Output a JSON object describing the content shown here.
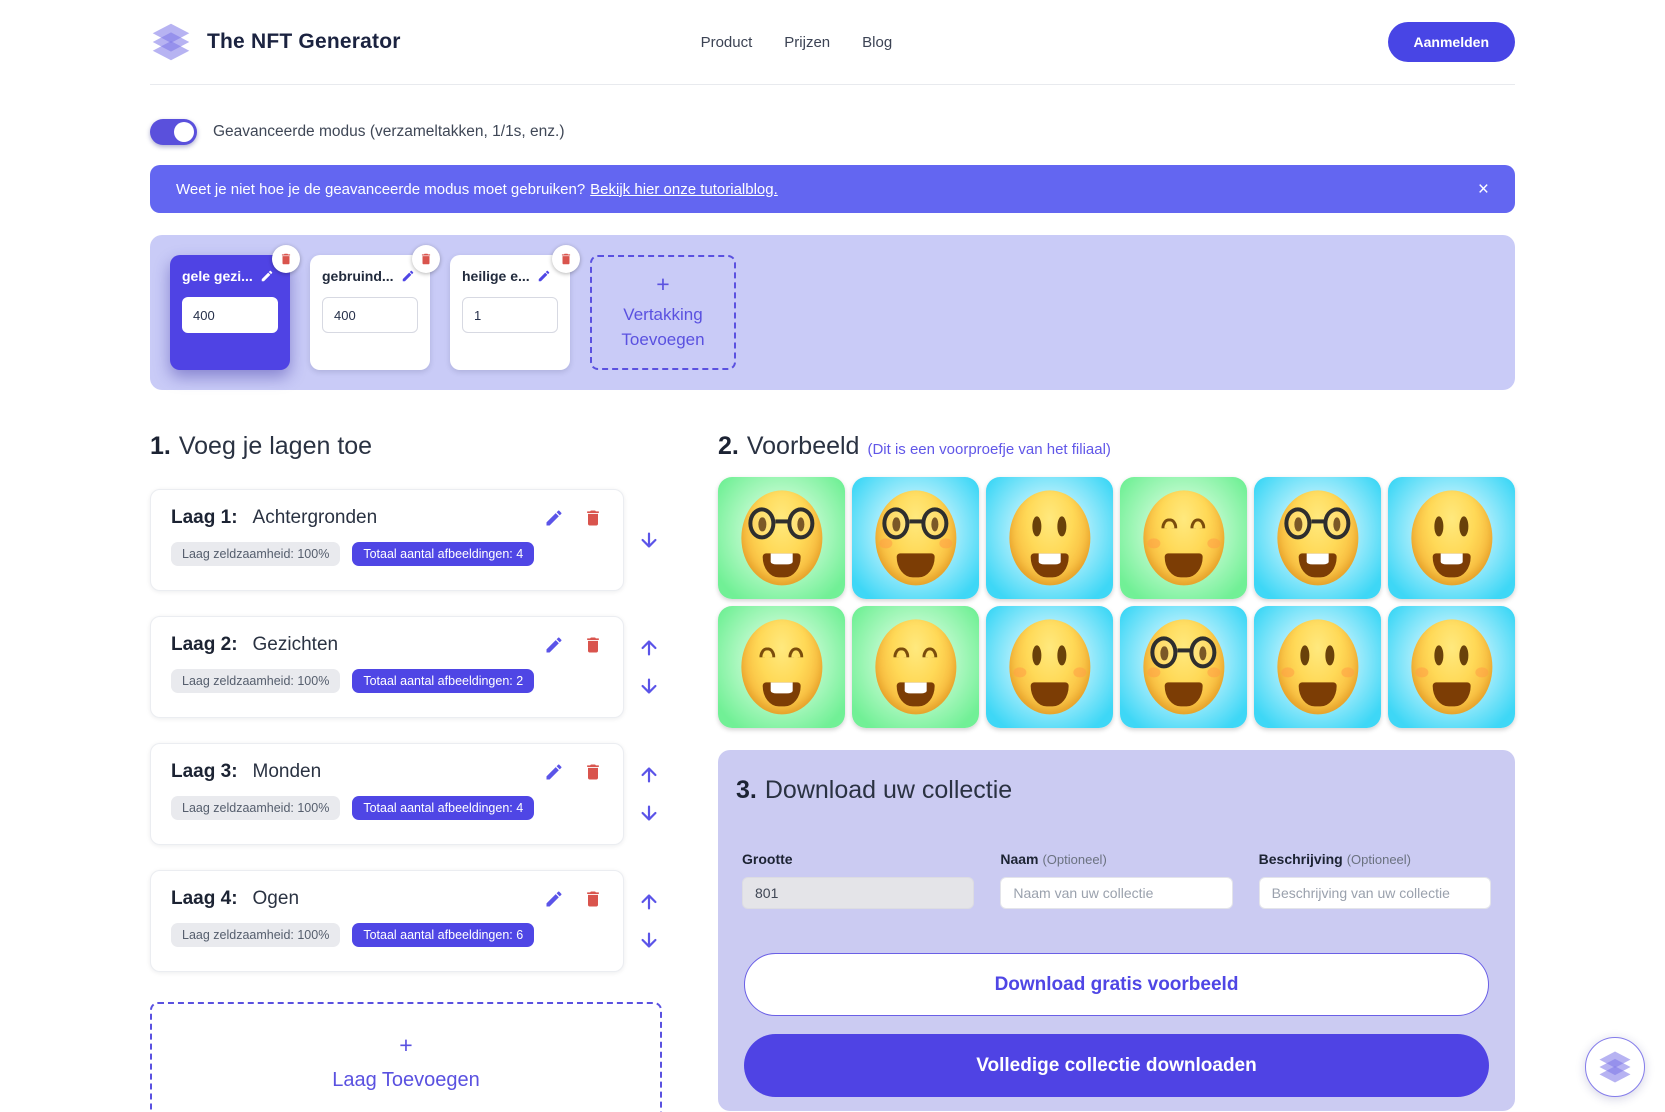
{
  "colors": {
    "primary": "#4f46e5",
    "banner": "#6366f1",
    "panel_bg": "#c9cbf7",
    "download_bg": "#cbcbf2",
    "danger": "#d9544d",
    "accent": "#5b54e8"
  },
  "header": {
    "brand": "The NFT Generator",
    "nav": [
      {
        "label": "Product"
      },
      {
        "label": "Prijzen"
      },
      {
        "label": "Blog"
      }
    ],
    "signin_label": "Aanmelden"
  },
  "advanced_toggle": {
    "on": true,
    "label": "Geavanceerde modus (verzameltakken, 1/1s, enz.)"
  },
  "banner": {
    "text": "Weet je niet hoe je de geavanceerde modus moet gebruiken?",
    "link_text": "Bekijk hier onze tutorialblog.",
    "close_label": "×"
  },
  "branches": {
    "items": [
      {
        "name": "gele gezi...",
        "count": "400",
        "selected": true
      },
      {
        "name": "gebruind...",
        "count": "400",
        "selected": false
      },
      {
        "name": "heilige e...",
        "count": "1",
        "selected": false
      }
    ],
    "add_plus": "+",
    "add_label": "Vertakking Toevoegen"
  },
  "layers_section": {
    "number": "1.",
    "title": "Voeg je lagen toe",
    "items": [
      {
        "prefix": "Laag 1:",
        "name": "Achtergronden",
        "rarity_label": "Laag zeldzaamheid: 100%",
        "total_label": "Totaal aantal afbeeldingen: 4",
        "can_up": false,
        "can_down": true
      },
      {
        "prefix": "Laag 2:",
        "name": "Gezichten",
        "rarity_label": "Laag zeldzaamheid: 100%",
        "total_label": "Totaal aantal afbeeldingen: 2",
        "can_up": true,
        "can_down": true
      },
      {
        "prefix": "Laag 3:",
        "name": "Monden",
        "rarity_label": "Laag zeldzaamheid: 100%",
        "total_label": "Totaal aantal afbeeldingen: 4",
        "can_up": true,
        "can_down": true
      },
      {
        "prefix": "Laag 4:",
        "name": "Ogen",
        "rarity_label": "Laag zeldzaamheid: 100%",
        "total_label": "Totaal aantal afbeeldingen: 6",
        "can_up": true,
        "can_down": true
      }
    ],
    "add_plus": "+",
    "add_label": "Laag Toevoegen"
  },
  "preview_section": {
    "number": "2.",
    "title": "Voorbeeld",
    "note": "(Dit is een voorproefje van het filiaal)",
    "tiles": [
      {
        "bg": "green",
        "glasses": true,
        "eyes": "oval",
        "mouth": "teeth",
        "blush": false
      },
      {
        "bg": "cyan",
        "glasses": true,
        "eyes": "oval",
        "mouth": "smile",
        "blush": true
      },
      {
        "bg": "cyan",
        "glasses": false,
        "eyes": "oval",
        "mouth": "teeth",
        "blush": false
      },
      {
        "bg": "green",
        "glasses": false,
        "eyes": "closed",
        "mouth": "smile",
        "blush": true
      },
      {
        "bg": "cyan",
        "glasses": true,
        "eyes": "oval",
        "mouth": "teeth",
        "blush": false
      },
      {
        "bg": "cyan",
        "glasses": false,
        "eyes": "oval",
        "mouth": "teeth",
        "blush": false
      },
      {
        "bg": "green",
        "glasses": false,
        "eyes": "closed",
        "mouth": "teeth",
        "blush": false
      },
      {
        "bg": "green",
        "glasses": false,
        "eyes": "closed",
        "mouth": "teeth",
        "blush": false
      },
      {
        "bg": "cyan",
        "glasses": false,
        "eyes": "oval",
        "mouth": "smile",
        "blush": true
      },
      {
        "bg": "cyan",
        "glasses": true,
        "eyes": "oval",
        "mouth": "smile",
        "blush": true
      },
      {
        "bg": "cyan",
        "glasses": false,
        "eyes": "oval",
        "mouth": "smile",
        "blush": true
      },
      {
        "bg": "cyan",
        "glasses": false,
        "eyes": "oval",
        "mouth": "smile",
        "blush": true
      }
    ]
  },
  "download_section": {
    "number": "3.",
    "title": "Download uw collectie",
    "size_field": {
      "label": "Grootte",
      "value": "801"
    },
    "name_field": {
      "label": "Naam",
      "optional": "(Optioneel)",
      "placeholder": "Naam van uw collectie"
    },
    "desc_field": {
      "label": "Beschrijving",
      "optional": "(Optioneel)",
      "placeholder": "Beschrijving van uw collectie"
    },
    "free_button": "Download gratis voorbeeld",
    "full_button": "Volledige collectie downloaden"
  }
}
